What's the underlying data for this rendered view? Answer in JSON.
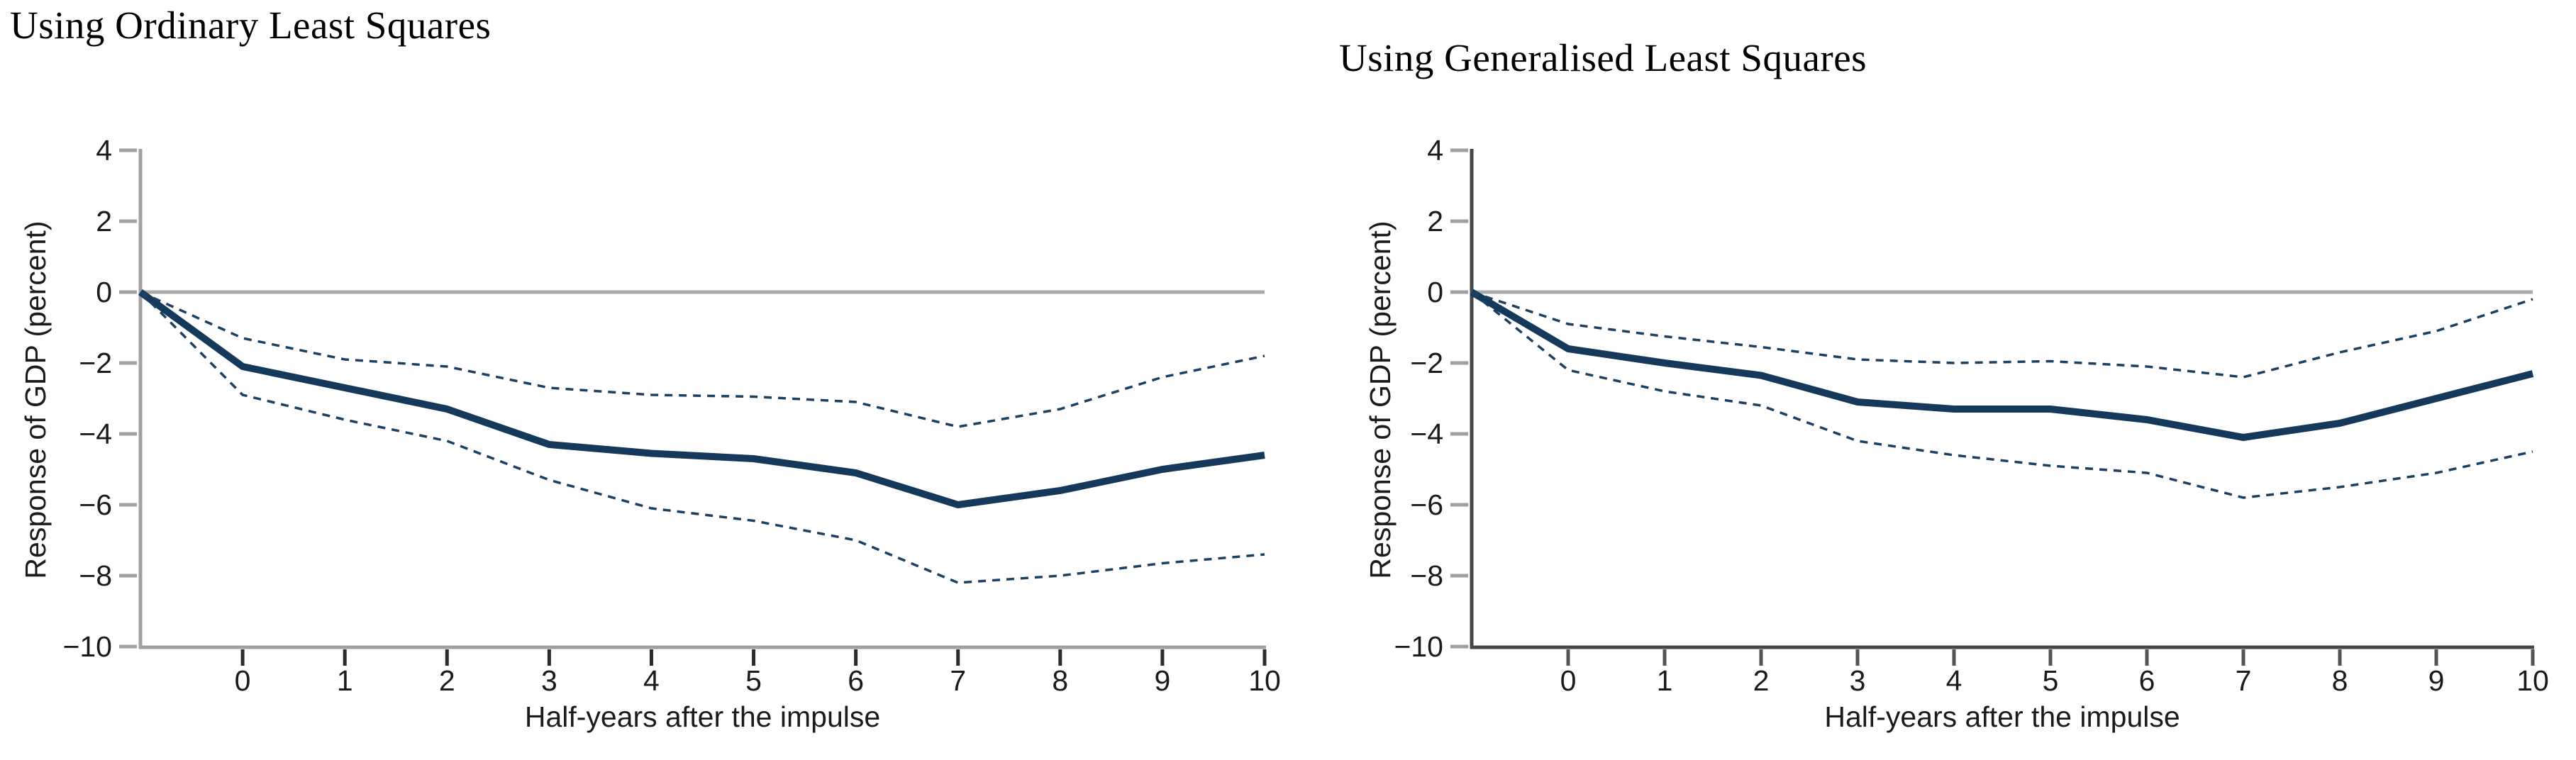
{
  "page": {
    "background": "#ffffff",
    "description_left_panel": "Using Ordinary Least Squares",
    "description_right_panel": "Using Generalised Least Squares"
  },
  "colors": {
    "series_navy": "#15395b",
    "dashed_navy": "#1c4060",
    "zero_line_gray": "#ababab",
    "axis_gray_left_chart": "#a0a0a0",
    "axis_dark_right_chart": "#474747",
    "tick_text": "#1b1b1b",
    "title_text": "#000000"
  },
  "chart_data": [
    {
      "type": "line",
      "title": "Using Ordinary Least Squares",
      "xlabel": "Half-years after the impulse",
      "ylabel": "Response of GDP (percent)",
      "xlim": [
        -1,
        10
      ],
      "ylim": [
        -10,
        4
      ],
      "grid": false,
      "zero_line": true,
      "legend_position": "none",
      "x": [
        -1,
        0,
        1,
        2,
        3,
        4,
        5,
        6,
        7,
        8,
        9,
        10
      ],
      "x_tick_labels": [
        "0",
        "1",
        "2",
        "3",
        "4",
        "5",
        "6",
        "7",
        "8",
        "9",
        "10"
      ],
      "x_ticks": [
        0,
        1,
        2,
        3,
        4,
        5,
        6,
        7,
        8,
        9,
        10
      ],
      "y_ticks": [
        4,
        2,
        0,
        -2,
        -4,
        -6,
        -8,
        -10
      ],
      "y_tick_labels": [
        "4",
        "2",
        "0",
        "−2",
        "−4",
        "−6",
        "−8",
        "−10"
      ],
      "series": [
        {
          "name": "point estimate",
          "style": "solid",
          "values": [
            0,
            -2.1,
            -2.7,
            -3.3,
            -4.3,
            -4.55,
            -4.7,
            -5.1,
            -6.0,
            -5.6,
            -5.0,
            -4.6
          ]
        },
        {
          "name": "upper confidence band",
          "style": "dashed",
          "values": [
            0,
            -1.3,
            -1.9,
            -2.1,
            -2.7,
            -2.9,
            -2.95,
            -3.1,
            -3.8,
            -3.3,
            -2.4,
            -1.8
          ]
        },
        {
          "name": "lower confidence band",
          "style": "dashed",
          "values": [
            0,
            -2.9,
            -3.6,
            -4.2,
            -5.3,
            -6.1,
            -6.45,
            -7.0,
            -8.2,
            -8.0,
            -7.65,
            -7.4
          ]
        }
      ]
    },
    {
      "type": "line",
      "title": "Using Generalised Least Squares",
      "xlabel": "Half-years after the impulse",
      "ylabel": "Response of GDP (percent)",
      "xlim": [
        -1,
        10
      ],
      "ylim": [
        -10,
        4
      ],
      "grid": false,
      "zero_line": true,
      "legend_position": "none",
      "x": [
        -1,
        0,
        1,
        2,
        3,
        4,
        5,
        6,
        7,
        8,
        9,
        10
      ],
      "x_tick_labels": [
        "0",
        "1",
        "2",
        "3",
        "4",
        "5",
        "6",
        "7",
        "8",
        "9",
        "10"
      ],
      "x_ticks": [
        0,
        1,
        2,
        3,
        4,
        5,
        6,
        7,
        8,
        9,
        10
      ],
      "y_ticks": [
        4,
        2,
        0,
        -2,
        -4,
        -6,
        -8,
        -10
      ],
      "y_tick_labels": [
        "4",
        "2",
        "0",
        "−2",
        "−4",
        "−6",
        "−8",
        "−10"
      ],
      "series": [
        {
          "name": "point estimate",
          "style": "solid",
          "values": [
            0,
            -1.6,
            -2.0,
            -2.35,
            -3.1,
            -3.3,
            -3.3,
            -3.6,
            -4.1,
            -3.7,
            -3.0,
            -2.3
          ]
        },
        {
          "name": "upper confidence band",
          "style": "dashed",
          "values": [
            0,
            -0.9,
            -1.25,
            -1.55,
            -1.9,
            -2.0,
            -1.95,
            -2.1,
            -2.4,
            -1.7,
            -1.1,
            -0.2
          ]
        },
        {
          "name": "lower confidence band",
          "style": "dashed",
          "values": [
            0,
            -2.2,
            -2.8,
            -3.2,
            -4.2,
            -4.6,
            -4.9,
            -5.1,
            -5.8,
            -5.5,
            -5.1,
            -4.5
          ]
        }
      ]
    }
  ]
}
